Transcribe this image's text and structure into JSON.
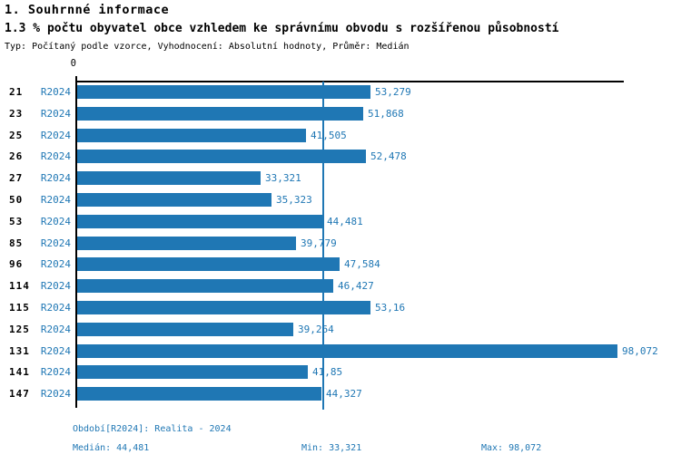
{
  "header": {
    "section_title": "1. Souhrnné informace",
    "indicator_title": "1.3 % počtu obyvatel obce vzhledem ke správnímu obvodu s rozšířenou působností",
    "meta_line": "Typ: Počítaný podle vzorce, Vyhodnocení: Absolutní hodnoty, Průměr: Medián"
  },
  "chart_data": {
    "type": "bar",
    "orientation": "horizontal",
    "title": "1.3 % počtu obyvatel obce vzhledem ke správnímu obvodu s rozšířenou působností",
    "series_label": "R2024",
    "categories": [
      "21",
      "23",
      "25",
      "26",
      "27",
      "50",
      "53",
      "85",
      "96",
      "114",
      "115",
      "125",
      "131",
      "141",
      "147"
    ],
    "values": [
      53.279,
      51.868,
      41.505,
      52.478,
      33.321,
      35.323,
      44.481,
      39.779,
      47.584,
      46.427,
      53.16,
      39.264,
      98.072,
      41.85,
      44.327
    ],
    "value_labels": [
      "53,279",
      "51,868",
      "41,505",
      "52,478",
      "33,321",
      "35,323",
      "44,481",
      "39,779",
      "47,584",
      "46,427",
      "53,16",
      "39,264",
      "98,072",
      "41,85",
      "44,327"
    ],
    "zero_tick_label": "0",
    "xlim": [
      0,
      99.2
    ],
    "median_value": 44.481,
    "median_display": "44,481",
    "min_value": 33.321,
    "max_value": 98.072,
    "bar_color": "#1f77b4",
    "median_line_color": "#1f77b4",
    "grid": false,
    "legend": false
  },
  "footer": {
    "period_line": "Období[R2024]: Realita - 2024",
    "median_label": "Medián: 44,481",
    "min_label": "Min: 33,321",
    "max_label": "Max: 98,072"
  }
}
